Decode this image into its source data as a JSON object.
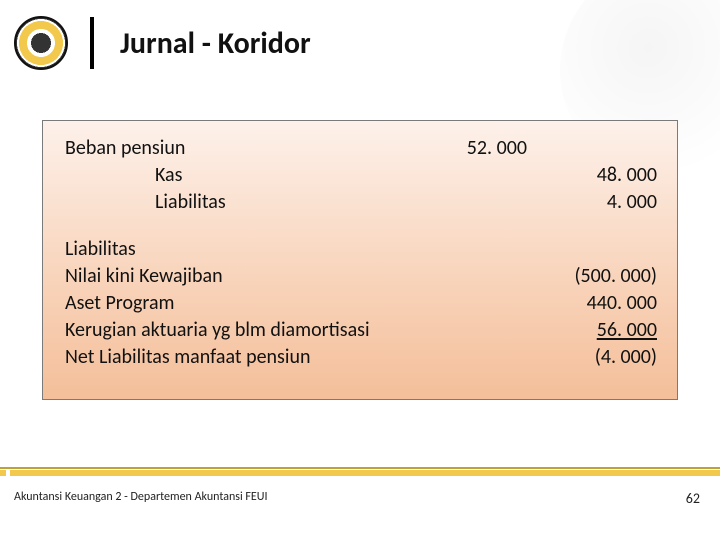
{
  "header": {
    "title": "Jurnal - Koridor"
  },
  "journal": {
    "rows": [
      {
        "label": "Beban   pensiun",
        "debit": "52. 000",
        "credit": "",
        "indent": false
      },
      {
        "label": "Kas",
        "debit": "",
        "credit": "48. 000",
        "indent": true
      },
      {
        "label": "Liabilitas",
        "debit": "",
        "credit": "4. 000",
        "indent": true
      }
    ]
  },
  "liability": {
    "heading": "Liabilitas",
    "rows": [
      {
        "label": "Nilai kini Kewajiban",
        "value": "(500. 000)",
        "underline": false
      },
      {
        "label": "Aset Program",
        "value": "440. 000",
        "underline": false
      },
      {
        "label": "Kerugian aktuaria yg blm diamortisasi",
        "value": "56. 000",
        "underline": true
      },
      {
        "label": "Net Liabilitas manfaat pensiun",
        "value": "(4. 000)",
        "underline": false
      }
    ]
  },
  "footer": {
    "text": "Akuntansi Keuangan 2 - Departemen Akuntansi FEUI",
    "page": "62"
  },
  "colors": {
    "accent": "#f2c94c",
    "box_border": "#7a7a7a",
    "box_bg_top": "#fdf1ea",
    "box_bg_bottom": "#f4bf9a"
  }
}
